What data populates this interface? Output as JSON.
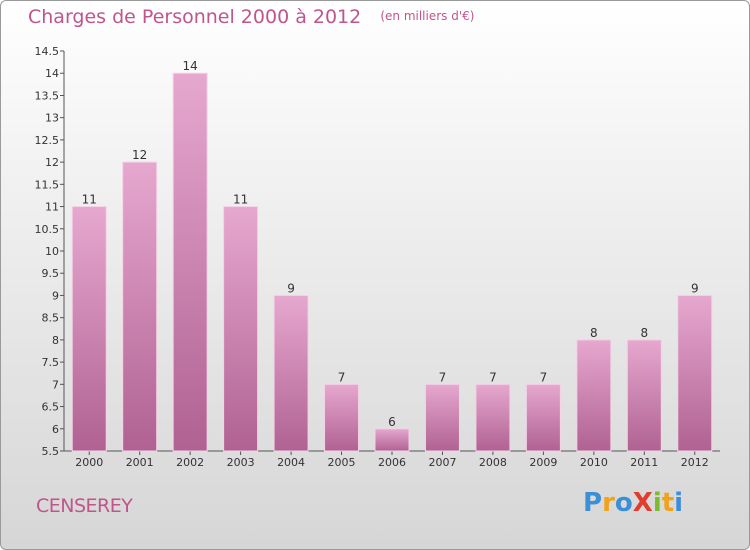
{
  "title": "Charges de Personnel 2000 à 2012",
  "subtitle": "(en milliers d'€)",
  "commune": "CENSEREY",
  "logo": {
    "text": "ProXiti",
    "letters": [
      "P",
      "r",
      "o",
      "X",
      "i",
      "t",
      "i"
    ],
    "colors": [
      "#3a8fd6",
      "#f0a21b",
      "#3a8fd6",
      "#e23b2f",
      "#7dbb2e",
      "#f0a21b",
      "#3a8fd6"
    ]
  },
  "colors": {
    "bar_top": "#e6a8cf",
    "bar_bottom": "#b06292",
    "accent": "#c0558c"
  },
  "chart_data": {
    "type": "bar",
    "categories": [
      "2000",
      "2001",
      "2002",
      "2003",
      "2004",
      "2005",
      "2006",
      "2007",
      "2008",
      "2009",
      "2010",
      "2011",
      "2012"
    ],
    "values": [
      11,
      12,
      14,
      11,
      9,
      7,
      6,
      7,
      7,
      7,
      8,
      8,
      9
    ],
    "labels": [
      "11",
      "12",
      "14",
      "11",
      "9",
      "7",
      "6",
      "7",
      "7",
      "7",
      "8",
      "8",
      "9"
    ],
    "ylim": [
      5.5,
      14.5
    ],
    "yticks": [
      "5.5",
      "6",
      "6.5",
      "7",
      "7.5",
      "8",
      "8.5",
      "9",
      "9.5",
      "10",
      "10.5",
      "11",
      "11.5",
      "12",
      "12.5",
      "13",
      "13.5",
      "14",
      "14.5"
    ],
    "xlabel": "",
    "ylabel": "",
    "grid": false
  }
}
